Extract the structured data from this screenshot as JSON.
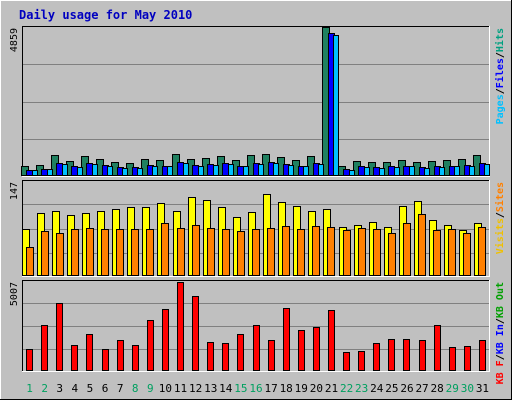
{
  "chart_data": {
    "type": "bar",
    "title": "Daily usage for May 2010",
    "categories": [
      "1",
      "2",
      "3",
      "4",
      "5",
      "6",
      "7",
      "8",
      "9",
      "10",
      "11",
      "12",
      "13",
      "14",
      "15",
      "16",
      "17",
      "18",
      "19",
      "20",
      "21",
      "22",
      "23",
      "24",
      "25",
      "26",
      "27",
      "28",
      "29",
      "30",
      "31"
    ],
    "weekend_days": [
      "1",
      "2",
      "8",
      "9",
      "15",
      "16",
      "22",
      "23",
      "29",
      "30"
    ],
    "panels": [
      {
        "id": "pages-files-hits",
        "ymax_label": "4859",
        "ymax": 4859,
        "legend": [
          {
            "text": "Pages",
            "color": "#00c0ff"
          },
          {
            "text": "/",
            "color": "#000000"
          },
          {
            "text": "Files",
            "color": "#0000ff"
          },
          {
            "text": "/",
            "color": "#000000"
          },
          {
            "text": "Hits",
            "color": "#00a080"
          }
        ],
        "series": [
          {
            "name": "Hits",
            "color": "#208060",
            "values": [
              330,
              360,
              680,
              480,
              640,
              540,
              450,
              420,
              540,
              520,
              720,
              560,
              590,
              640,
              520,
              680,
              710,
              620,
              510,
              650,
              4859,
              330,
              480,
              450,
              470,
              510,
              450,
              480,
              510,
              550,
              680
            ]
          },
          {
            "name": "Files",
            "color": "#0000ff",
            "values": [
              210,
              240,
              420,
              330,
              420,
              360,
              300,
              290,
              360,
              340,
              460,
              370,
              390,
              410,
              340,
              430,
              450,
              400,
              340,
              420,
              4650,
              220,
              320,
              300,
              320,
              340,
              300,
              320,
              340,
              360,
              430
            ]
          },
          {
            "name": "Pages",
            "color": "#00c0ff",
            "values": [
              190,
              220,
              380,
              300,
              380,
              330,
              270,
              260,
              330,
              310,
              420,
              340,
              360,
              380,
              310,
              400,
              410,
              370,
              310,
              390,
              4600,
              200,
              290,
              270,
              290,
              310,
              270,
              290,
              310,
              330,
              400
            ]
          }
        ]
      },
      {
        "id": "visits-sites",
        "ymax_label": "147",
        "ymax": 147,
        "legend": [
          {
            "text": "Visits",
            "color": "#f0c000"
          },
          {
            "text": "/",
            "color": "#000000"
          },
          {
            "text": "Sites",
            "color": "#ff8000"
          }
        ],
        "series": [
          {
            "name": "Visits",
            "color": "#ffff00",
            "values": [
              72,
              98,
              100,
              95,
              97,
              100,
              103,
              107,
              107,
              113,
              101,
              123,
              117,
              106,
              91,
              99,
              127,
              114,
              108,
              101,
              103,
              76,
              79,
              84,
              76,
              109,
              116,
              86,
              79,
              71,
              82
            ]
          },
          {
            "name": "Sites",
            "color": "#ff8000",
            "values": [
              45,
              70,
              66,
              72,
              74,
              72,
              73,
              73,
              73,
              82,
              74,
              79,
              74,
              73,
              70,
              73,
              74,
              78,
              72,
              78,
              76,
              71,
              74,
              72,
              66,
              82,
              96,
              71,
              73,
              66,
              76
            ]
          }
        ]
      },
      {
        "id": "kbytes",
        "ymax_label": "5007",
        "ymax": 5007,
        "legend": [
          {
            "text": "KB F",
            "color": "#ff0000"
          },
          {
            "text": "/",
            "color": "#000000"
          },
          {
            "text": "KB In",
            "color": "#0000ff"
          },
          {
            "text": "/",
            "color": "#000000"
          },
          {
            "text": "KB Out",
            "color": "#00a000"
          }
        ],
        "series": [
          {
            "name": "KB F",
            "color": "#ff0000",
            "values": [
              1210,
              2540,
              3780,
              1440,
              2050,
              1200,
              1750,
              1470,
              2820,
              3460,
              4959,
              4180,
              1640,
              1550,
              2080,
              2540,
              1720,
              3480,
              2260,
              2470,
              3420,
              1040,
              1100,
              1550,
              1760,
              1790,
              1750,
              2540,
              1330,
              1410,
              1740
            ]
          }
        ]
      }
    ]
  }
}
